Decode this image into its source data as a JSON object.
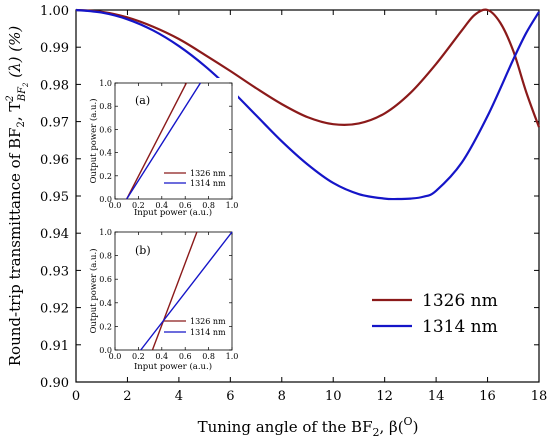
{
  "chart_data": [
    {
      "type": "line",
      "xlabel": "Tuning angle of the BF",
      "xlabel_sub": "2",
      "xlabel_tail": ", β(",
      "xlabel_sup": "O",
      "xlabel_end": ")",
      "ylabel_main": "Round-trip transmittance of BF",
      "ylabel_sub": "2",
      "ylabel_sep": ", T",
      "ylabel_tsup": "2",
      "ylabel_tsub": "BF",
      "ylabel_tsub2": "2",
      "ylabel_arg": " (λ)  (%)",
      "xlim": [
        0,
        18
      ],
      "ylim": [
        0.9,
        1.0
      ],
      "xticks": [
        "0",
        "2",
        "4",
        "6",
        "8",
        "10",
        "12",
        "14",
        "16",
        "18"
      ],
      "yticks": [
        "0.90",
        "0.91",
        "0.92",
        "0.93",
        "0.94",
        "0.95",
        "0.96",
        "0.97",
        "0.98",
        "0.99",
        "1.00"
      ],
      "grid": false,
      "legend_position": "bottom-right",
      "series": [
        {
          "name": "1326 nm",
          "color": "#8b1a1a",
          "x": [
            0,
            1,
            2,
            3,
            4,
            5,
            6,
            7,
            8,
            9,
            10,
            11,
            12,
            13,
            14,
            15,
            15.5,
            16,
            16.5,
            17,
            17.5,
            18
          ],
          "y": [
            1.0,
            0.9995,
            0.998,
            0.9955,
            0.9922,
            0.988,
            0.9836,
            0.979,
            0.9747,
            0.9712,
            0.9693,
            0.9695,
            0.9722,
            0.9777,
            0.9855,
            0.9945,
            0.9987,
            1.0,
            0.9965,
            0.989,
            0.978,
            0.9685
          ]
        },
        {
          "name": "1314 nm",
          "color": "#1515c8",
          "x": [
            0,
            1,
            2,
            3,
            4,
            5,
            6,
            7,
            8,
            9,
            10,
            11,
            12,
            12.5,
            13,
            13.5,
            14,
            15,
            16,
            17,
            17.5,
            18
          ],
          "y": [
            1.0,
            0.9993,
            0.9975,
            0.9945,
            0.9903,
            0.985,
            0.9787,
            0.9717,
            0.9647,
            0.9585,
            0.9535,
            0.9505,
            0.9493,
            0.9492,
            0.9493,
            0.9498,
            0.9514,
            0.959,
            0.9715,
            0.9867,
            0.9938,
            0.9995
          ]
        }
      ]
    },
    {
      "type": "line",
      "panel_label": "(a)",
      "xlabel": "Input power (a.u.)",
      "ylabel": "Output power (a.u.)",
      "xlim": [
        0,
        1
      ],
      "ylim": [
        0,
        1
      ],
      "xticks": [
        "0.0",
        "0.2",
        "0.4",
        "0.6",
        "0.8",
        "1.0"
      ],
      "yticks": [
        "0.0",
        "0.2",
        "0.4",
        "0.6",
        "0.8",
        "1.0"
      ],
      "series": [
        {
          "name": "1326 nm",
          "color": "#8b1a1a",
          "x": [
            0.1,
            0.61
          ],
          "y": [
            0.0,
            1.0
          ]
        },
        {
          "name": "1314 nm",
          "color": "#1515c8",
          "x": [
            0.1,
            0.73
          ],
          "y": [
            0.0,
            1.0
          ]
        }
      ]
    },
    {
      "type": "line",
      "panel_label": "(b)",
      "xlabel": "Input power (a.u.)",
      "ylabel": "Output power (a.u.)",
      "xlim": [
        0,
        1
      ],
      "ylim": [
        0,
        1
      ],
      "xticks": [
        "0.0",
        "0.2",
        "0.4",
        "0.6",
        "0.8",
        "1.0"
      ],
      "yticks": [
        "0.0",
        "0.2",
        "0.4",
        "0.6",
        "0.8",
        "1.0"
      ],
      "series": [
        {
          "name": "1326 nm",
          "color": "#8b1a1a",
          "x": [
            0.32,
            0.7
          ],
          "y": [
            0.0,
            1.0
          ]
        },
        {
          "name": "1314 nm",
          "color": "#1515c8",
          "x": [
            0.22,
            1.0
          ],
          "y": [
            0.0,
            1.0
          ]
        }
      ]
    }
  ]
}
